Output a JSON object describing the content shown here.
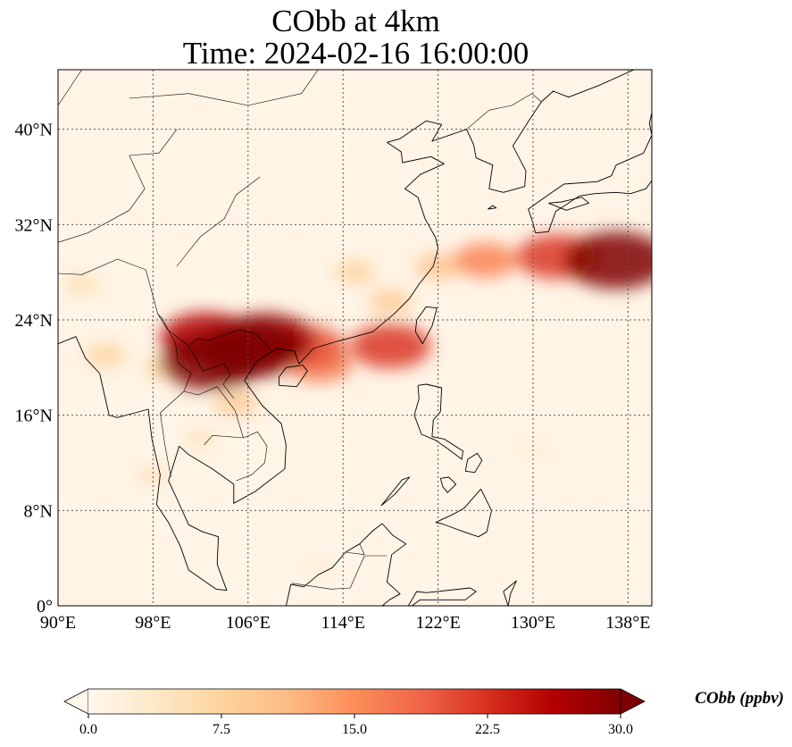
{
  "title": {
    "line1": "CObb at 4km",
    "line2": "Time: 2024-02-16 16:00:00"
  },
  "map": {
    "projection": "PlateCarree",
    "extent": {
      "lon": [
        90,
        140
      ],
      "lat": [
        0,
        45
      ]
    },
    "variable": "CObb",
    "units": "ppbv",
    "gridlines": "dotted",
    "x_ticks": [
      {
        "value": 90,
        "label": "90°E"
      },
      {
        "value": 98,
        "label": "98°E"
      },
      {
        "value": 106,
        "label": "106°E"
      },
      {
        "value": 114,
        "label": "114°E"
      },
      {
        "value": 122,
        "label": "122°E"
      },
      {
        "value": 130,
        "label": "130°E"
      },
      {
        "value": 138,
        "label": "138°E"
      }
    ],
    "y_ticks": [
      {
        "value": 0,
        "label": "0°"
      },
      {
        "value": 8,
        "label": "8°N"
      },
      {
        "value": 16,
        "label": "16°N"
      },
      {
        "value": 24,
        "label": "24°N"
      },
      {
        "value": 32,
        "label": "32°N"
      },
      {
        "value": 40,
        "label": "40°N"
      }
    ],
    "field_regions": [
      {
        "lon": 106,
        "lat": 21.5,
        "value": 30
      },
      {
        "lon": 103,
        "lat": 20.5,
        "value": 30
      },
      {
        "lon": 107.5,
        "lat": 22.3,
        "value": 28
      },
      {
        "lon": 102.5,
        "lat": 22.5,
        "value": 26
      },
      {
        "lon": 111,
        "lat": 21.8,
        "value": 20
      },
      {
        "lon": 112,
        "lat": 20.3,
        "value": 17
      },
      {
        "lon": 118,
        "lat": 21.8,
        "value": 22
      },
      {
        "lon": 137,
        "lat": 29,
        "value": 30
      },
      {
        "lon": 132,
        "lat": 29.3,
        "value": 22
      },
      {
        "lon": 126,
        "lat": 29,
        "value": 16
      },
      {
        "lon": 122,
        "lat": 28.5,
        "value": 10
      },
      {
        "lon": 115,
        "lat": 28,
        "value": 8
      },
      {
        "lon": 118,
        "lat": 25.5,
        "value": 9
      },
      {
        "lon": 105,
        "lat": 17,
        "value": 9
      },
      {
        "lon": 99,
        "lat": 20,
        "value": 8
      },
      {
        "lon": 94,
        "lat": 21,
        "value": 8
      },
      {
        "lon": 92,
        "lat": 27,
        "value": 6
      },
      {
        "lon": 102,
        "lat": 14,
        "value": 5
      },
      {
        "lon": 98,
        "lat": 11,
        "value": 5
      },
      {
        "lon": 130,
        "lat": 13,
        "value": 3
      },
      {
        "lon": 112,
        "lat": 3,
        "value": 3
      }
    ]
  },
  "colorbar": {
    "label": "CObb (ppbv)",
    "colormap": "OrRd",
    "min": 0,
    "max": 30,
    "extend": "both",
    "ticks": [
      {
        "value": 0,
        "label": "0.0"
      },
      {
        "value": 7.5,
        "label": "7.5"
      },
      {
        "value": 15,
        "label": "15.0"
      },
      {
        "value": 22.5,
        "label": "22.5"
      },
      {
        "value": 30,
        "label": "30.0"
      }
    ],
    "colors": [
      "#fff7ec",
      "#fee8c8",
      "#fdd49e",
      "#fdbb84",
      "#fc8d59",
      "#ef6548",
      "#d7301f",
      "#b30000",
      "#7f0000"
    ]
  }
}
